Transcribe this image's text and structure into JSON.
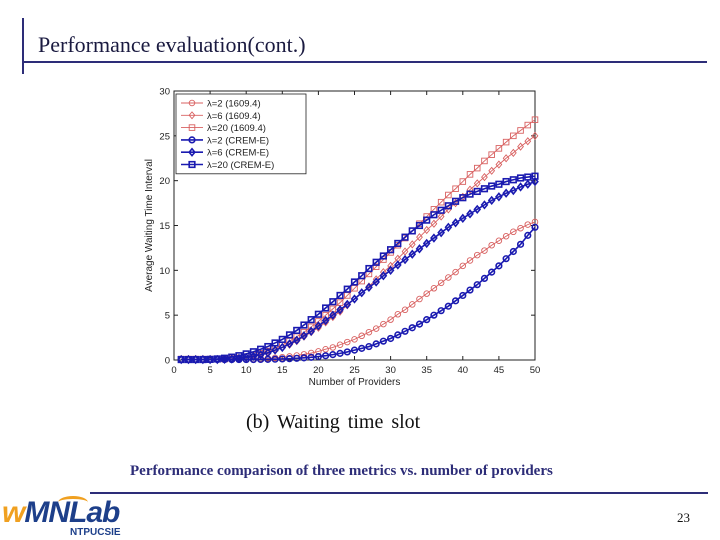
{
  "slide": {
    "title": "Performance evaluation(cont.)",
    "caption": "(b) Waiting time slot",
    "subcaption": "Performance comparison of three metrics vs. number of providers",
    "page_number": "23",
    "logo": {
      "text": "wMNLab",
      "sub": "NTPUCSIE"
    }
  },
  "chart_data": {
    "type": "line",
    "xlabel": "Number of Providers",
    "ylabel": "Average Waiting Time Interval",
    "xlim": [
      0,
      50
    ],
    "ylim": [
      0,
      30
    ],
    "xticks": [
      0,
      5,
      10,
      15,
      20,
      25,
      30,
      35,
      40,
      45,
      50
    ],
    "yticks": [
      0,
      5,
      10,
      15,
      20,
      25,
      30
    ],
    "grid": false,
    "legend_position": "top-left",
    "x": [
      1,
      2,
      3,
      4,
      5,
      6,
      7,
      8,
      9,
      10,
      11,
      12,
      13,
      14,
      15,
      16,
      17,
      18,
      19,
      20,
      21,
      22,
      23,
      24,
      25,
      26,
      27,
      28,
      29,
      30,
      31,
      32,
      33,
      34,
      35,
      36,
      37,
      38,
      39,
      40,
      41,
      42,
      43,
      44,
      45,
      46,
      47,
      48,
      49,
      50
    ],
    "series": [
      {
        "name": "λ=2 (1609.4)",
        "color": "#d86060",
        "marker": "circle",
        "style": "1609",
        "values": [
          0.1,
          0.1,
          0.1,
          0.1,
          0.1,
          0.1,
          0.1,
          0.1,
          0.1,
          0.1,
          0.11,
          0.15,
          0.19,
          0.24,
          0.31,
          0.4,
          0.5,
          0.63,
          0.78,
          0.96,
          1.2,
          1.4,
          1.7,
          2.0,
          2.3,
          2.7,
          3.1,
          3.5,
          4.0,
          4.5,
          5.1,
          5.6,
          6.2,
          6.8,
          7.4,
          8.0,
          8.6,
          9.2,
          9.8,
          10.5,
          11.1,
          11.7,
          12.2,
          12.8,
          13.3,
          13.8,
          14.3,
          14.7,
          15.1,
          15.4
        ]
      },
      {
        "name": "λ=6 (1609.4)",
        "color": "#d86060",
        "marker": "diamond",
        "style": "1609",
        "values": [
          0.1,
          0.1,
          0.1,
          0.1,
          0.1,
          0.1,
          0.1,
          0.14,
          0.21,
          0.31,
          0.44,
          0.61,
          0.82,
          1.1,
          1.4,
          1.7,
          2.1,
          2.6,
          3.1,
          3.6,
          4.2,
          4.8,
          5.4,
          6.1,
          6.8,
          7.5,
          8.2,
          9.0,
          9.8,
          10.5,
          11.3,
          12.1,
          12.9,
          13.7,
          14.5,
          15.2,
          16.0,
          16.8,
          17.5,
          18.2,
          19.0,
          19.7,
          20.4,
          21.1,
          21.8,
          22.5,
          23.1,
          23.8,
          24.4,
          25.0
        ]
      },
      {
        "name": "λ=20 (1609.4)",
        "color": "#d86060",
        "marker": "square",
        "style": "1609",
        "values": [
          0.1,
          0.1,
          0.1,
          0.1,
          0.1,
          0.1,
          0.1,
          0.16,
          0.25,
          0.38,
          0.54,
          0.75,
          1.0,
          1.3,
          1.7,
          2.1,
          2.6,
          3.1,
          3.7,
          4.3,
          5.0,
          5.7,
          6.4,
          7.2,
          8.0,
          8.8,
          9.6,
          10.4,
          11.2,
          12.0,
          12.8,
          13.6,
          14.4,
          15.2,
          16.0,
          16.8,
          17.6,
          18.4,
          19.1,
          19.9,
          20.7,
          21.4,
          22.2,
          22.9,
          23.6,
          24.3,
          25.0,
          25.6,
          26.2,
          26.8
        ]
      },
      {
        "name": "λ=2 (CREM-E)",
        "color": "#1a1ab0",
        "marker": "circle",
        "style": "crem",
        "values": [
          0.05,
          0.05,
          0.05,
          0.05,
          0.05,
          0.05,
          0.05,
          0.05,
          0.05,
          0.05,
          0.05,
          0.06,
          0.07,
          0.09,
          0.12,
          0.15,
          0.19,
          0.24,
          0.3,
          0.38,
          0.48,
          0.6,
          0.74,
          0.9,
          1.1,
          1.3,
          1.5,
          1.8,
          2.1,
          2.4,
          2.8,
          3.2,
          3.6,
          4.0,
          4.5,
          5.0,
          5.5,
          6.0,
          6.6,
          7.2,
          7.8,
          8.4,
          9.1,
          9.8,
          10.5,
          11.3,
          12.1,
          12.9,
          13.9,
          14.8
        ]
      },
      {
        "name": "λ=6 (CREM-E)",
        "color": "#1a1ab0",
        "marker": "diamond",
        "style": "crem",
        "values": [
          0.05,
          0.05,
          0.05,
          0.05,
          0.05,
          0.05,
          0.07,
          0.11,
          0.18,
          0.28,
          0.41,
          0.58,
          0.8,
          1.1,
          1.4,
          1.8,
          2.2,
          2.7,
          3.2,
          3.8,
          4.4,
          5.0,
          5.6,
          6.2,
          6.8,
          7.5,
          8.1,
          8.7,
          9.4,
          10.0,
          10.6,
          11.2,
          11.8,
          12.4,
          13.0,
          13.6,
          14.2,
          14.8,
          15.3,
          15.8,
          16.3,
          16.8,
          17.3,
          17.8,
          18.2,
          18.6,
          18.9,
          19.3,
          19.6,
          19.9
        ]
      },
      {
        "name": "λ=20 (CREM-E)",
        "color": "#1a1ab0",
        "marker": "square",
        "style": "crem",
        "values": [
          0.05,
          0.05,
          0.05,
          0.05,
          0.07,
          0.12,
          0.2,
          0.32,
          0.48,
          0.68,
          0.92,
          1.2,
          1.5,
          1.9,
          2.3,
          2.8,
          3.3,
          3.9,
          4.5,
          5.1,
          5.8,
          6.5,
          7.2,
          7.9,
          8.7,
          9.4,
          10.2,
          10.9,
          11.6,
          12.3,
          13.0,
          13.7,
          14.4,
          15.0,
          15.6,
          16.2,
          16.7,
          17.2,
          17.7,
          18.1,
          18.5,
          18.8,
          19.1,
          19.4,
          19.6,
          19.9,
          20.1,
          20.3,
          20.4,
          20.5
        ]
      }
    ]
  }
}
